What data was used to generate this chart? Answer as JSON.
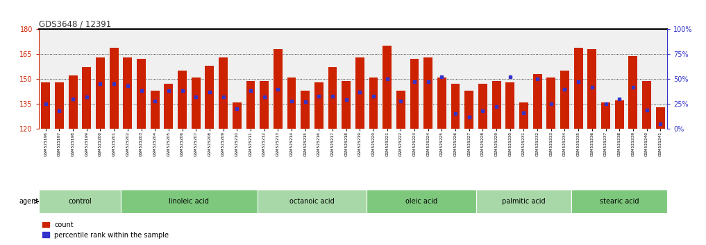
{
  "title": "GDS3648 / 12391",
  "ylim": [
    120,
    180
  ],
  "yticks": [
    120,
    135,
    150,
    165,
    180
  ],
  "y2_ticks": [
    0,
    25,
    50,
    75,
    100
  ],
  "y2_labels": [
    "0%",
    "25%",
    "50%",
    "75%",
    "100%"
  ],
  "samples": [
    "GSM525196",
    "GSM525197",
    "GSM525198",
    "GSM525199",
    "GSM525200",
    "GSM525201",
    "GSM525202",
    "GSM525203",
    "GSM525204",
    "GSM525205",
    "GSM525206",
    "GSM525207",
    "GSM525208",
    "GSM525209",
    "GSM525210",
    "GSM525211",
    "GSM525212",
    "GSM525213",
    "GSM525214",
    "GSM525215",
    "GSM525216",
    "GSM525217",
    "GSM525218",
    "GSM525219",
    "GSM525220",
    "GSM525221",
    "GSM525222",
    "GSM525223",
    "GSM525224",
    "GSM525225",
    "GSM525226",
    "GSM525227",
    "GSM525228",
    "GSM525229",
    "GSM525230",
    "GSM525231",
    "GSM525232",
    "GSM525233",
    "GSM525234",
    "GSM525235",
    "GSM525236",
    "GSM525237",
    "GSM525238",
    "GSM525239",
    "GSM525240",
    "GSM525241"
  ],
  "counts": [
    148,
    148,
    152,
    157,
    163,
    169,
    163,
    162,
    143,
    147,
    155,
    151,
    158,
    163,
    136,
    149,
    149,
    168,
    151,
    143,
    148,
    157,
    149,
    163,
    151,
    170,
    143,
    162,
    163,
    151,
    147,
    143,
    147,
    149,
    148,
    136,
    153,
    151,
    155,
    169,
    168,
    136,
    137,
    164,
    149,
    133
  ],
  "percentile": [
    25,
    18,
    30,
    32,
    45,
    45,
    43,
    38,
    28,
    38,
    38,
    32,
    37,
    32,
    20,
    38,
    32,
    40,
    28,
    27,
    33,
    33,
    29,
    37,
    33,
    50,
    28,
    47,
    47,
    52,
    15,
    12,
    18,
    22,
    52,
    16,
    50,
    25,
    40,
    47,
    42,
    25,
    30,
    42,
    19,
    5
  ],
  "groups": [
    {
      "name": "control",
      "start": 0,
      "end": 6
    },
    {
      "name": "linoleic acid",
      "start": 6,
      "end": 16
    },
    {
      "name": "octanoic acid",
      "start": 16,
      "end": 24
    },
    {
      "name": "oleic acid",
      "start": 24,
      "end": 32
    },
    {
      "name": "palmitic acid",
      "start": 32,
      "end": 39
    },
    {
      "name": "stearic acid",
      "start": 39,
      "end": 46
    }
  ],
  "bar_color": "#cc2200",
  "dot_color": "#3333cc",
  "plot_bg": "#f0f0f0",
  "axis_color_left": "#cc2200",
  "axis_color_right": "#3333cc",
  "grid_color": "#000000",
  "top_spine_color": "#000000"
}
